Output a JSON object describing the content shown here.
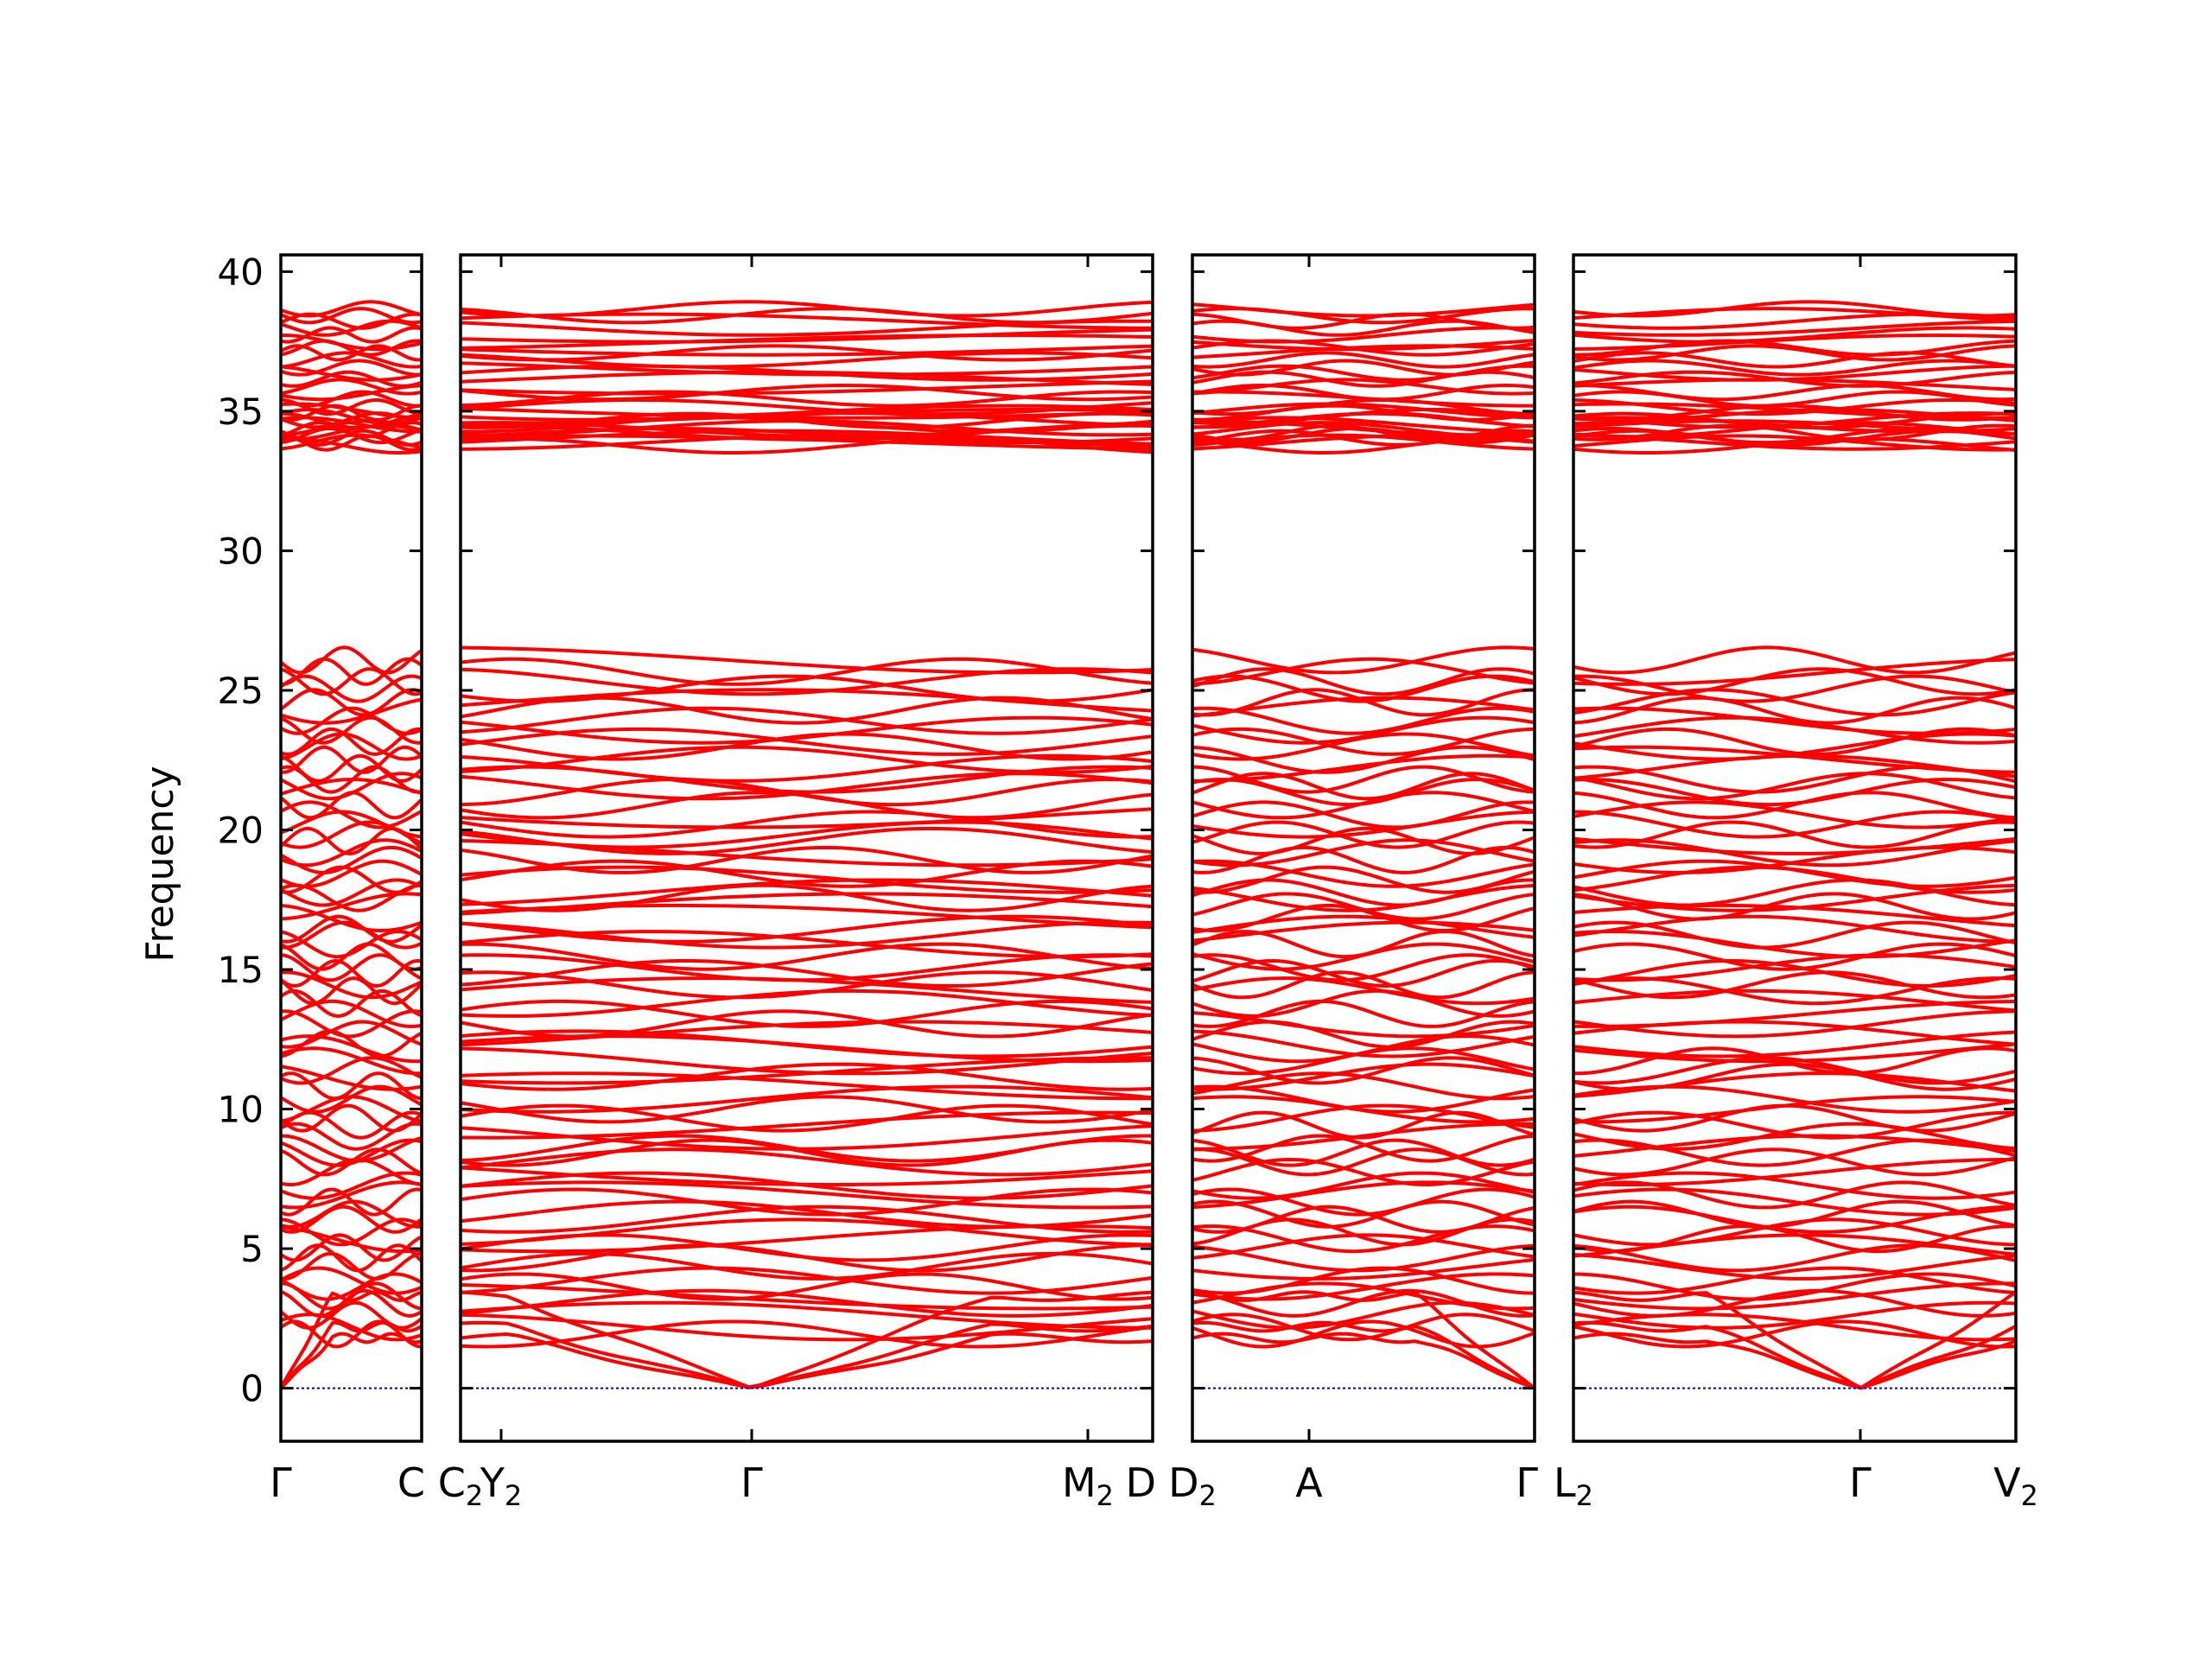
{
  "chart_data": {
    "type": "line",
    "ylabel": "Frequency",
    "ylim": [
      -1.9,
      40.6
    ],
    "yticks": [
      0,
      5,
      10,
      15,
      20,
      25,
      30,
      35,
      40
    ],
    "grid": false,
    "line_color": "#ff0000",
    "zero_line_color": "#0000cc",
    "bands": {
      "lower_range": [
        0,
        26.0
      ],
      "upper_range": [
        33.7,
        38.7
      ],
      "acoustic_branches_at_gamma": 3
    },
    "panels": [
      {
        "ticks": [
          {
            "base": "Γ",
            "sub": ""
          },
          {
            "base": "C",
            "sub": ""
          }
        ],
        "acoustic_zero_at": [
          0
        ],
        "sample_modes_at_ticks": [
          [
            0.0,
            38.6
          ],
          [
            1.8,
            38.6
          ]
        ]
      },
      {
        "ticks": [
          {
            "base": "C",
            "sub": "2"
          },
          {
            "base": "Y",
            "sub": "2"
          },
          {
            "base": "Γ",
            "sub": ""
          },
          {
            "base": "M",
            "sub": "2"
          },
          {
            "base": "D",
            "sub": ""
          }
        ],
        "acoustic_zero_at": [
          2
        ],
        "sample_modes_at_ticks": [
          [
            1.7,
            38.6
          ],
          [
            1.7,
            38.6
          ],
          [
            0.0,
            38.5
          ],
          [
            2.1,
            38.5
          ],
          [
            2.0,
            38.5
          ]
        ]
      },
      {
        "ticks": [
          {
            "base": "D",
            "sub": "2"
          },
          {
            "base": "A",
            "sub": ""
          },
          {
            "base": "Γ",
            "sub": ""
          }
        ],
        "acoustic_zero_at": [
          2
        ],
        "sample_modes_at_ticks": [
          [
            2.0,
            38.5
          ],
          [
            2.1,
            38.5
          ],
          [
            0.0,
            38.5
          ]
        ]
      },
      {
        "ticks": [
          {
            "base": "L",
            "sub": "2"
          },
          {
            "base": "Γ",
            "sub": ""
          },
          {
            "base": "V",
            "sub": "2"
          }
        ],
        "acoustic_zero_at": [
          1
        ],
        "sample_modes_at_ticks": [
          [
            2.5,
            38.5
          ],
          [
            0.0,
            38.5
          ],
          [
            1.7,
            38.5
          ]
        ]
      }
    ]
  }
}
